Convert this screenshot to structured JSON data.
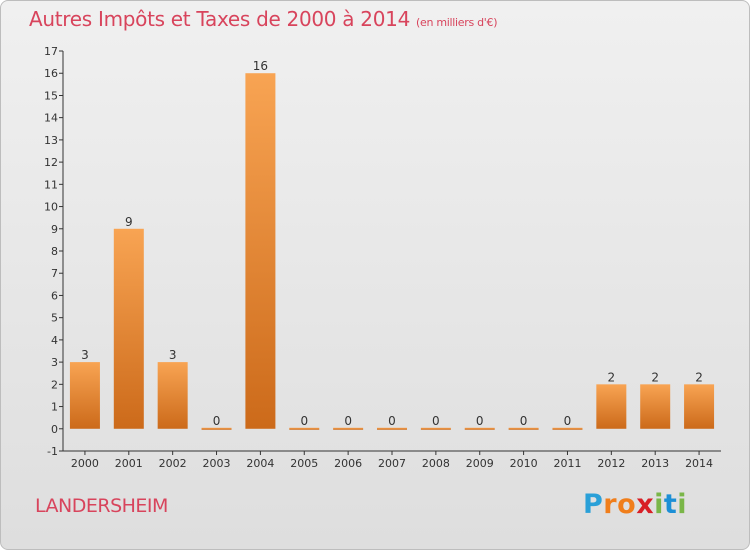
{
  "title": {
    "main": "Autres Impôts et Taxes de 2000 à 2014",
    "unit": "(en milliers d'€)"
  },
  "location": "LANDERSHEIM",
  "logo": {
    "letters": [
      "P",
      "r",
      "o",
      "x",
      "i",
      "t",
      "i"
    ],
    "colors": [
      "#2aa0d8",
      "#f07e1b",
      "#f07e1b",
      "#d81f26",
      "#7ab648",
      "#1c8fd6",
      "#7ab648"
    ]
  },
  "colors": {
    "bar_top": "#f8a453",
    "bar_bottom": "#cc6a1a",
    "title": "#d8445c",
    "axis": "#333333"
  },
  "chart_data": {
    "type": "bar",
    "categories": [
      "2000",
      "2001",
      "2002",
      "2003",
      "2004",
      "2005",
      "2006",
      "2007",
      "2008",
      "2009",
      "2010",
      "2011",
      "2012",
      "2013",
      "2014"
    ],
    "values": [
      3,
      9,
      3,
      0,
      16,
      0,
      0,
      0,
      0,
      0,
      0,
      0,
      2,
      2,
      2
    ],
    "ylim": [
      -1,
      17
    ],
    "yticks": [
      "-1",
      "0",
      "1",
      "2",
      "3",
      "4",
      "5",
      "6",
      "7",
      "8",
      "9",
      "10",
      "11",
      "12",
      "13",
      "14",
      "15",
      "16",
      "17"
    ],
    "data_labels": [
      "3",
      "9",
      "3",
      "0",
      "16",
      "0",
      "0",
      "0",
      "0",
      "0",
      "0",
      "0",
      "2",
      "2",
      "2"
    ],
    "grid": false,
    "legend": "none"
  }
}
